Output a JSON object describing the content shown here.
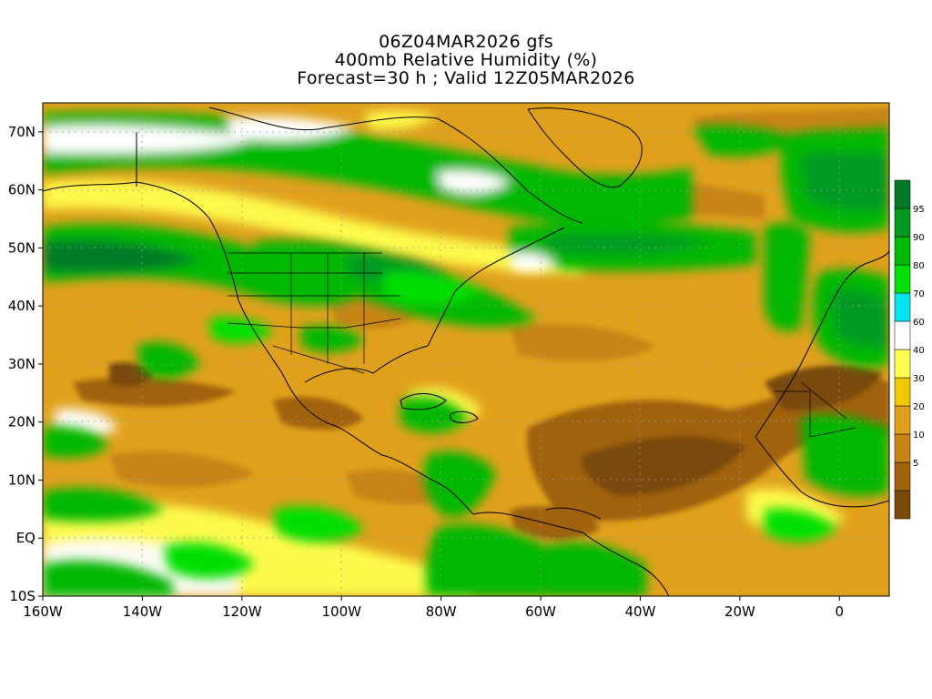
{
  "title": {
    "line1": "06Z04MAR2026 gfs",
    "line2": "400mb Relative Humidity (%)",
    "line3": "Forecast=30 h ; Valid 12Z05MAR2026"
  },
  "map": {
    "lon_range": [
      -160,
      10
    ],
    "lat_range": [
      -10,
      75
    ],
    "lat_ticks": [
      {
        "value": 70,
        "label": "70N"
      },
      {
        "value": 60,
        "label": "60N"
      },
      {
        "value": 50,
        "label": "50N"
      },
      {
        "value": 40,
        "label": "40N"
      },
      {
        "value": 30,
        "label": "30N"
      },
      {
        "value": 20,
        "label": "20N"
      },
      {
        "value": 10,
        "label": "10N"
      },
      {
        "value": 0,
        "label": "EQ"
      },
      {
        "value": -10,
        "label": "10S"
      }
    ],
    "lon_ticks": [
      {
        "value": -160,
        "label": "160W"
      },
      {
        "value": -140,
        "label": "140W"
      },
      {
        "value": -120,
        "label": "120W"
      },
      {
        "value": -100,
        "label": "100W"
      },
      {
        "value": -80,
        "label": "80W"
      },
      {
        "value": -60,
        "label": "60W"
      },
      {
        "value": -40,
        "label": "40W"
      },
      {
        "value": -20,
        "label": "20W"
      },
      {
        "value": 0,
        "label": "0"
      }
    ]
  },
  "colorbar": {
    "levels": [
      {
        "label": "",
        "color": "#7a4a08"
      },
      {
        "label": "5",
        "color": "#a0620c"
      },
      {
        "label": "10",
        "color": "#c88414"
      },
      {
        "label": "20",
        "color": "#e0a01c"
      },
      {
        "label": "30",
        "color": "#f0c800"
      },
      {
        "label": "40",
        "color": "#ffff50"
      },
      {
        "label": "60",
        "color": "#ffffff"
      },
      {
        "label": "70",
        "color": "#00e6f0"
      },
      {
        "label": "80",
        "color": "#00e000"
      },
      {
        "label": "90",
        "color": "#00b800"
      },
      {
        "label": "95",
        "color": "#009a20"
      },
      {
        "label": "",
        "color": "#007a28"
      }
    ]
  }
}
